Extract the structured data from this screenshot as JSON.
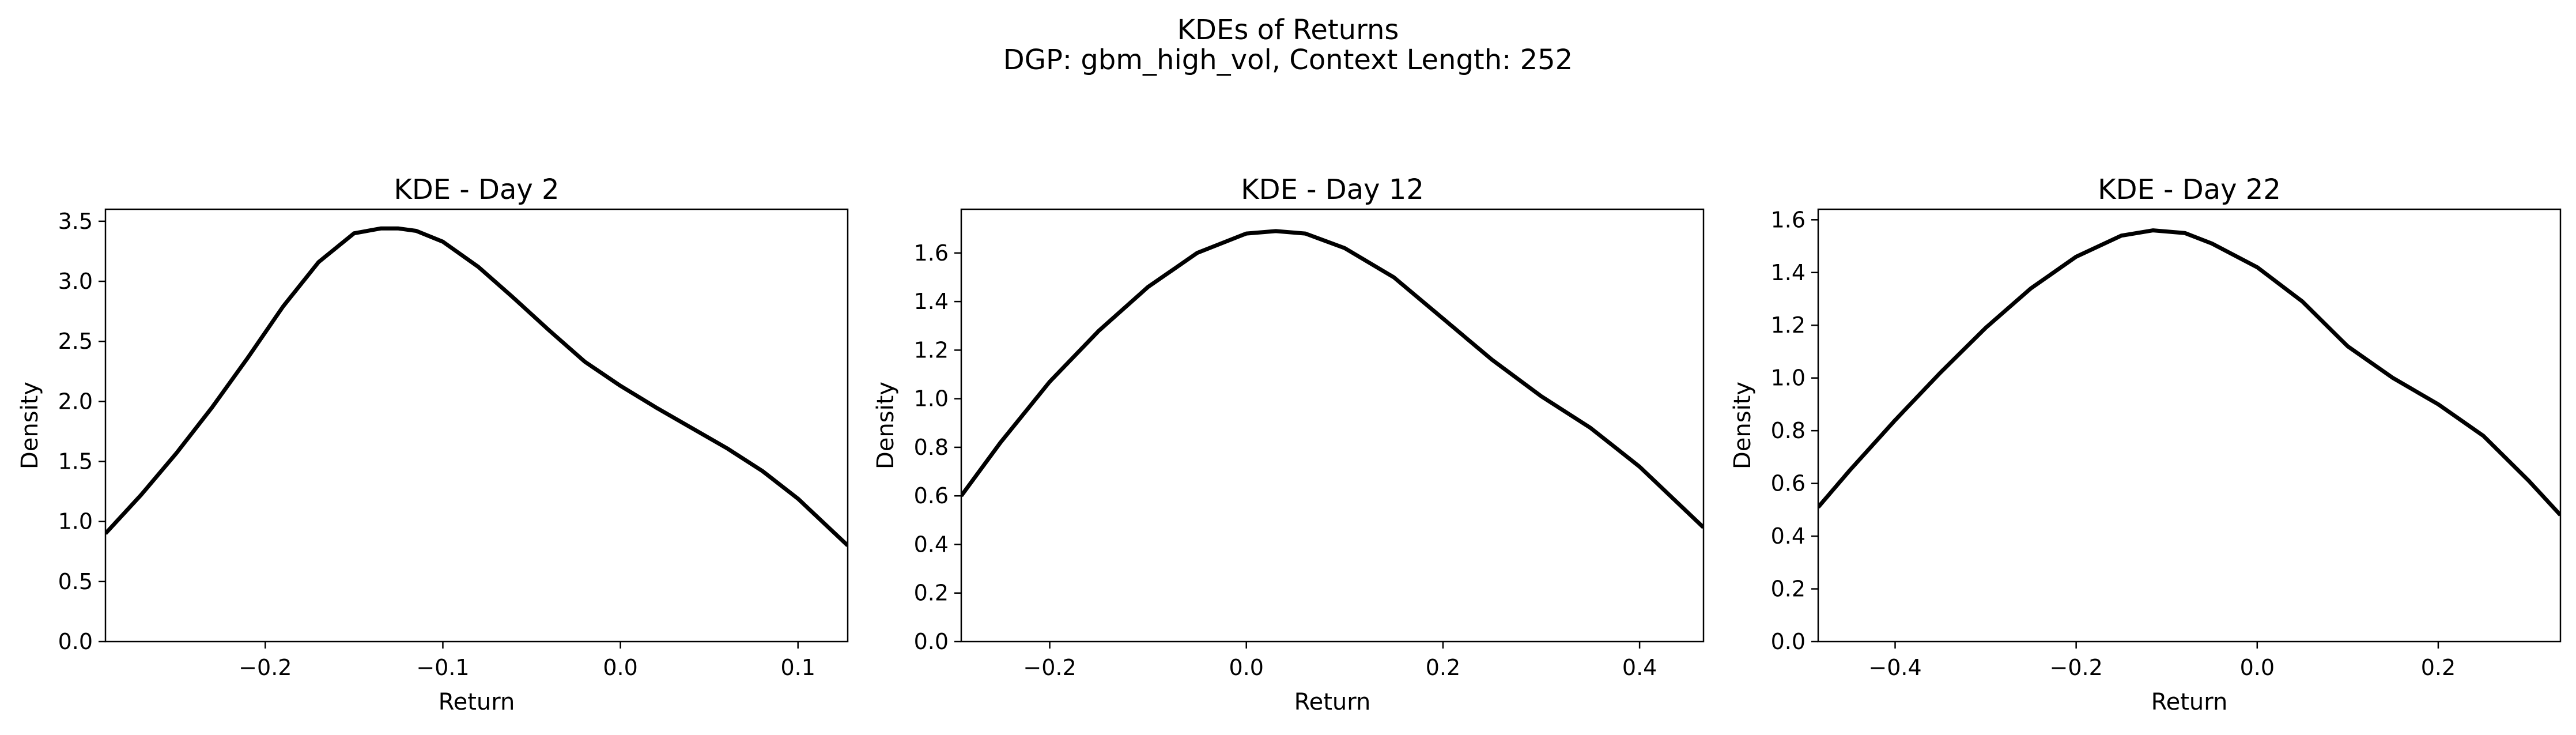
{
  "figure": {
    "title_line1": "KDEs of Returns",
    "title_line2": "DGP: gbm_high_vol, Context Length: 252"
  },
  "chart_data": [
    {
      "type": "line",
      "title": "KDE - Day 2",
      "xlabel": "Return",
      "ylabel": "Density",
      "xlim": [
        -0.29,
        0.128
      ],
      "ylim": [
        0.0,
        3.6
      ],
      "xticks": [
        -0.2,
        -0.1,
        0.0,
        0.1
      ],
      "xtick_labels": [
        "−0.2",
        "−0.1",
        "0.0",
        "0.1"
      ],
      "yticks": [
        0.0,
        0.5,
        1.0,
        1.5,
        2.0,
        2.5,
        3.0,
        3.5
      ],
      "ytick_labels": [
        "0.0",
        "0.5",
        "1.0",
        "1.5",
        "2.0",
        "2.5",
        "3.0",
        "3.5"
      ],
      "grid": false,
      "line_color": "#000000",
      "series": [
        {
          "x": [
            -0.29,
            -0.27,
            -0.25,
            -0.23,
            -0.21,
            -0.19,
            -0.17,
            -0.15,
            -0.135,
            -0.125,
            -0.115,
            -0.1,
            -0.08,
            -0.06,
            -0.04,
            -0.02,
            0.0,
            0.02,
            0.04,
            0.06,
            0.08,
            0.1,
            0.128
          ],
          "y": [
            0.9,
            1.22,
            1.57,
            1.95,
            2.36,
            2.79,
            3.16,
            3.4,
            3.44,
            3.44,
            3.42,
            3.33,
            3.12,
            2.86,
            2.59,
            2.33,
            2.13,
            1.95,
            1.78,
            1.61,
            1.42,
            1.19,
            0.8
          ]
        }
      ]
    },
    {
      "type": "line",
      "title": "KDE - Day 12",
      "xlabel": "Return",
      "ylabel": "Density",
      "xlim": [
        -0.29,
        0.465
      ],
      "ylim": [
        0.0,
        1.78
      ],
      "xticks": [
        -0.2,
        0.0,
        0.2,
        0.4
      ],
      "xtick_labels": [
        "−0.2",
        "0.0",
        "0.2",
        "0.4"
      ],
      "yticks": [
        0.0,
        0.2,
        0.4,
        0.6,
        0.8,
        1.0,
        1.2,
        1.4,
        1.6
      ],
      "ytick_labels": [
        "0.0",
        "0.2",
        "0.4",
        "0.6",
        "0.8",
        "1.0",
        "1.2",
        "1.4",
        "1.6"
      ],
      "grid": false,
      "line_color": "#000000",
      "series": [
        {
          "x": [
            -0.29,
            -0.25,
            -0.2,
            -0.15,
            -0.1,
            -0.05,
            0.0,
            0.03,
            0.06,
            0.1,
            0.15,
            0.2,
            0.25,
            0.3,
            0.35,
            0.4,
            0.465
          ],
          "y": [
            0.6,
            0.82,
            1.07,
            1.28,
            1.46,
            1.6,
            1.68,
            1.69,
            1.68,
            1.62,
            1.5,
            1.33,
            1.16,
            1.01,
            0.88,
            0.72,
            0.47
          ]
        }
      ]
    },
    {
      "type": "line",
      "title": "KDE - Day 22",
      "xlabel": "Return",
      "ylabel": "Density",
      "xlim": [
        -0.485,
        0.335
      ],
      "ylim": [
        0.0,
        1.64
      ],
      "xticks": [
        -0.4,
        -0.2,
        0.0,
        0.2
      ],
      "xtick_labels": [
        "−0.4",
        "−0.2",
        "0.0",
        "0.2"
      ],
      "yticks": [
        0.0,
        0.2,
        0.4,
        0.6,
        0.8,
        1.0,
        1.2,
        1.4,
        1.6
      ],
      "ytick_labels": [
        "0.0",
        "0.2",
        "0.4",
        "0.6",
        "0.8",
        "1.0",
        "1.2",
        "1.4",
        "1.6"
      ],
      "grid": false,
      "line_color": "#000000",
      "series": [
        {
          "x": [
            -0.485,
            -0.45,
            -0.4,
            -0.35,
            -0.3,
            -0.25,
            -0.2,
            -0.15,
            -0.115,
            -0.08,
            -0.05,
            0.0,
            0.05,
            0.1,
            0.15,
            0.2,
            0.25,
            0.3,
            0.335
          ],
          "y": [
            0.51,
            0.65,
            0.84,
            1.02,
            1.19,
            1.34,
            1.46,
            1.54,
            1.56,
            1.55,
            1.51,
            1.42,
            1.29,
            1.12,
            1.0,
            0.9,
            0.78,
            0.61,
            0.48
          ]
        }
      ]
    }
  ]
}
